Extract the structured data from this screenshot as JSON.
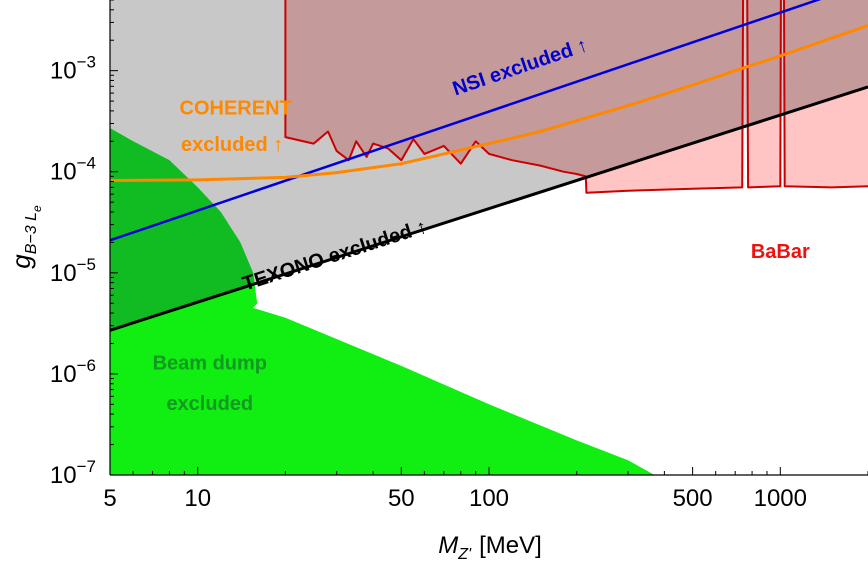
{
  "chart_data": {
    "type": "area",
    "xscale": "log",
    "yscale": "log",
    "xlim": [
      5,
      2000
    ],
    "ylim": [
      1e-07,
      0.005
    ],
    "xlabel": {
      "main": "M",
      "sub": "Z'",
      "unit": "[MeV]"
    },
    "ylabel": {
      "main": "g",
      "sub": "B−3 L",
      "subsub": "e"
    },
    "xticks": [
      {
        "value": 5,
        "label": "5"
      },
      {
        "value": 10,
        "label": "10"
      },
      {
        "value": 50,
        "label": "50"
      },
      {
        "value": 100,
        "label": "100"
      },
      {
        "value": 500,
        "label": "500"
      },
      {
        "value": 1000,
        "label": "1000"
      }
    ],
    "yticks": [
      {
        "value": 1e-07,
        "base": "10",
        "exp": "−7"
      },
      {
        "value": 1e-06,
        "base": "10",
        "exp": "−6"
      },
      {
        "value": 1e-05,
        "base": "10",
        "exp": "−5"
      },
      {
        "value": 0.0001,
        "base": "10",
        "exp": "−4"
      },
      {
        "value": 0.001,
        "base": "10",
        "exp": "−3"
      }
    ],
    "colors": {
      "texono_fill": "#c8c8c8",
      "babar_fill": "#ffc4c4",
      "babar_overlap_fill": "#c49a9a",
      "babar_line": "#cc0000",
      "beamdump_light": "#11ee11",
      "beamdump_dark": "#11bb22",
      "nsi_line": "#0000dd",
      "coherent_line": "#ff8800",
      "texono_line": "#000000",
      "babar_label": "#ee1111",
      "beamdump_label": "#119922",
      "nsi_label": "#0000cc",
      "coherent_label": "#ff8800"
    },
    "series": [
      {
        "name": "TEXONO",
        "kind": "bound",
        "x": [
          5,
          2000
        ],
        "y": [
          2.7e-06,
          0.00069
        ]
      },
      {
        "name": "NSI",
        "kind": "bound",
        "x": [
          5,
          2000
        ],
        "y": [
          2.1e-05,
          0.0074
        ]
      },
      {
        "name": "COHERENT",
        "kind": "bound",
        "x": [
          5,
          10,
          20,
          30,
          50,
          70,
          100,
          150,
          200,
          300,
          500,
          700,
          1000,
          1500,
          2000
        ],
        "y": [
          8.2e-05,
          8.3e-05,
          8.8e-05,
          9.8e-05,
          0.00012,
          0.00015,
          0.00019,
          0.00025,
          0.00032,
          0.00045,
          0.00072,
          0.001,
          0.0014,
          0.0021,
          0.0028
        ]
      },
      {
        "name": "BaBar",
        "kind": "bound",
        "x": [
          20,
          20,
          25,
          28,
          30,
          33,
          35,
          38,
          40,
          45,
          50,
          55,
          60,
          70,
          80,
          90,
          100,
          120,
          150,
          180,
          200,
          215,
          216,
          300,
          500,
          740,
          745,
          770,
          775,
          1000,
          1005,
          1030,
          1035,
          1500,
          2000
        ],
        "y": [
          0.006,
          0.00022,
          0.00019,
          0.00025,
          0.00016,
          0.00013,
          0.0002,
          0.00014,
          0.00019,
          0.00017,
          0.00013,
          0.00021,
          0.00015,
          0.00018,
          0.00012,
          0.0002,
          0.00015,
          0.00013,
          0.000115,
          0.0001,
          9.5e-05,
          9e-05,
          6.2e-05,
          6.5e-05,
          6.8e-05,
          7e-05,
          0.006,
          0.006,
          7e-05,
          7.2e-05,
          0.006,
          0.006,
          7.2e-05,
          7e-05,
          7.2e-05
        ]
      },
      {
        "name": "Beam dump",
        "kind": "region",
        "x": [
          5,
          6,
          8,
          10,
          12,
          14,
          15.5,
          16,
          15.5,
          20,
          50,
          100,
          200,
          300,
          370,
          5
        ],
        "y": [
          0.00027,
          0.0002,
          0.00013,
          7e-05,
          4e-05,
          2e-05,
          1e-05,
          5e-06,
          4.5e-06,
          3.6e-06,
          1.2e-06,
          5e-07,
          2.2e-07,
          1.4e-07,
          1e-07,
          1e-07
        ]
      }
    ],
    "annotations": [
      {
        "id": "nsi",
        "text": "NSI excluded ↑",
        "x": 130,
        "y": 0.00095
      },
      {
        "id": "coherent-1",
        "text": "COHERENT",
        "x": 8,
        "y": 0.00037
      },
      {
        "id": "coherent-2",
        "text": "excluded ↑",
        "x": 8.1,
        "y": 0.00016
      },
      {
        "id": "texono",
        "text": "TEXONO excluded ↑",
        "x": 30,
        "y": 1.3e-05
      },
      {
        "id": "babar",
        "text": "BaBar",
        "x": 1000,
        "y": 1.4e-05
      },
      {
        "id": "beamdump-1",
        "text": "Beam dump",
        "x": 11,
        "y": 1.1e-06
      },
      {
        "id": "beamdump-2",
        "text": "excluded",
        "x": 11,
        "y": 4.4e-07
      }
    ]
  }
}
